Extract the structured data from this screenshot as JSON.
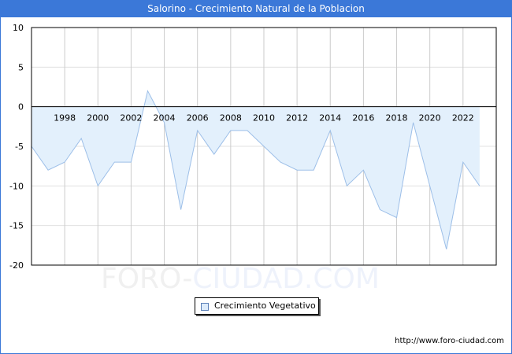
{
  "header": {
    "title": "Salorino - Crecimiento Natural de la Poblacion"
  },
  "legend": {
    "label": "Crecimiento Vegetativo"
  },
  "footer": {
    "url": "http://www.foro-ciudad.com"
  },
  "watermark": {
    "part1": "FORO-",
    "part2": "CIUDAD.COM"
  },
  "colors": {
    "title_bg": "#3b78d8",
    "area_fill": "#e3f0fc",
    "line": "#9dbfe8",
    "grid": "#cccccc"
  },
  "chart_data": {
    "type": "area",
    "title": "Salorino - Crecimiento Natural de la Poblacion",
    "xlabel": "",
    "ylabel": "",
    "ylim": [
      -20,
      10
    ],
    "yticks": [
      10,
      5,
      0,
      -5,
      -10,
      -15,
      -20
    ],
    "xtick_labels": [
      "1998",
      "2000",
      "2002",
      "2004",
      "2006",
      "2008",
      "2010",
      "2012",
      "2014",
      "2016",
      "2018",
      "2020",
      "2022"
    ],
    "grid": true,
    "legend_position": "bottom",
    "x": [
      1996,
      1997,
      1998,
      1999,
      2000,
      2001,
      2002,
      2003,
      2004,
      2005,
      2006,
      2007,
      2008,
      2009,
      2010,
      2011,
      2012,
      2013,
      2014,
      2015,
      2016,
      2017,
      2018,
      2019,
      2020,
      2021,
      2022,
      2023
    ],
    "series": [
      {
        "name": "Crecimiento Vegetativo",
        "values": [
          -5,
          -8,
          -7,
          -4,
          -10,
          -7,
          -7,
          2,
          -2,
          -13,
          -3,
          -6,
          -3,
          -3,
          -5,
          -7,
          -8,
          -8,
          -3,
          -10,
          -8,
          -13,
          -14,
          -2,
          -10,
          -18,
          -7,
          -10
        ]
      }
    ]
  }
}
